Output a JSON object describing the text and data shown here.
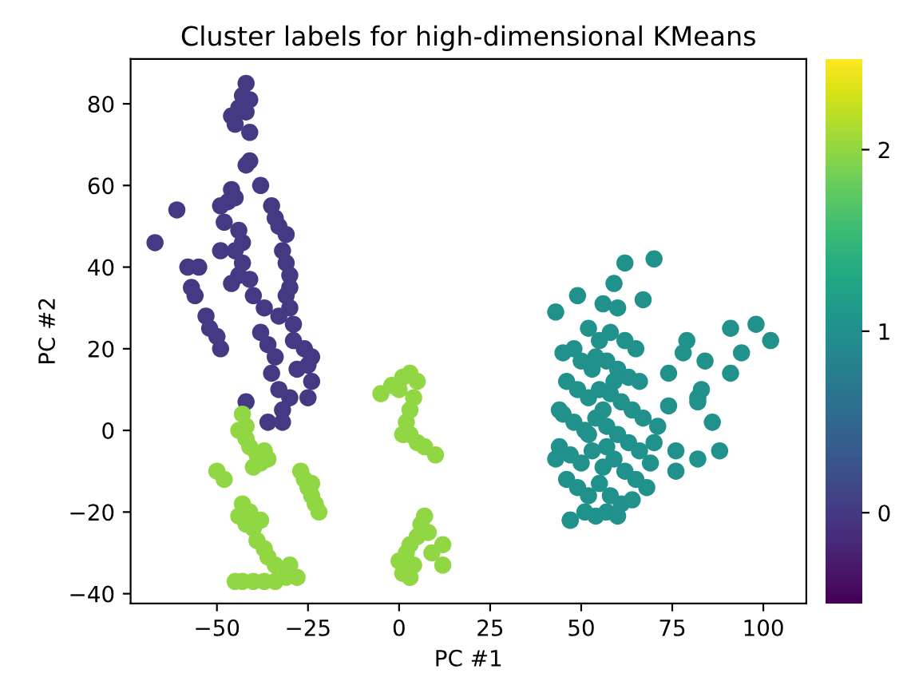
{
  "chart_data": {
    "type": "scatter",
    "title": "Cluster labels for high-dimensional KMeans",
    "xlabel": "PC #1",
    "ylabel": "PC #2",
    "xlim": [
      -73.7,
      111.8
    ],
    "ylim": [
      -42.4,
      91
    ],
    "xticks": [
      -50,
      -25,
      0,
      25,
      50,
      75,
      100
    ],
    "yticks": [
      -40,
      -20,
      0,
      20,
      40,
      60,
      80
    ],
    "clim": [
      -0.5,
      2.5
    ],
    "cticks": [
      0,
      1,
      2
    ],
    "grid": false,
    "legend": false,
    "marker": "circle",
    "series": [
      {
        "x": [
          -42,
          -43,
          -41,
          -44,
          -42,
          -46,
          -45,
          -41,
          -41,
          -42,
          -38,
          -46,
          -47,
          -45,
          -49,
          -35,
          -34,
          -33,
          -31,
          -48,
          -44,
          -43,
          -49,
          -45,
          -43,
          -32,
          -31,
          -30,
          -44,
          -41,
          -46,
          -61,
          -67,
          -58,
          -55,
          -57,
          -56,
          -53,
          -52,
          -50,
          -49,
          -40,
          -37,
          -33,
          -30,
          -29,
          -31,
          -30,
          -38,
          -36,
          -34,
          -35,
          -33,
          -32,
          -30,
          -29,
          -26,
          -25,
          -24,
          -25,
          -28,
          -42,
          -36,
          -32,
          -24
        ],
        "values": [
          85,
          82,
          81,
          79,
          78,
          77,
          75,
          73,
          66,
          65,
          60,
          59,
          56,
          57,
          55,
          55,
          52,
          50,
          48,
          51,
          49,
          46,
          44,
          44,
          41,
          44,
          41,
          38,
          38,
          37,
          36,
          54,
          46,
          40,
          40,
          35,
          33,
          28,
          25,
          23,
          20,
          33,
          30,
          28,
          30,
          26,
          33,
          35,
          24,
          21,
          18,
          14,
          10,
          5,
          8,
          22,
          20,
          16,
          12,
          8,
          15,
          7,
          2,
          2,
          18
        ],
        "cvalues": [
          0,
          0,
          0,
          0,
          0,
          0,
          0,
          0,
          0,
          0,
          0,
          0,
          0,
          0,
          0,
          0,
          0,
          0,
          0,
          0,
          0,
          0,
          0,
          0,
          0,
          0,
          0,
          0,
          0,
          0,
          0,
          0,
          0,
          0,
          0,
          0,
          0,
          0,
          0,
          0,
          0,
          0,
          0,
          0,
          0,
          0,
          0,
          0,
          0,
          0,
          0,
          0,
          0,
          0,
          0,
          0,
          0,
          0,
          0,
          0,
          0,
          0,
          0,
          0,
          0
        ]
      },
      {
        "x": [
          70,
          62,
          59,
          67,
          49,
          43,
          56,
          60,
          98,
          102,
          91,
          94,
          91,
          79,
          78,
          84,
          74,
          83,
          82,
          71,
          74,
          82,
          86,
          88,
          76,
          82,
          70,
          76,
          52,
          55,
          58,
          62,
          65,
          48,
          50,
          53,
          57,
          60,
          63,
          66,
          46,
          49,
          52,
          55,
          58,
          61,
          64,
          67,
          45,
          48,
          51,
          54,
          57,
          60,
          63,
          66,
          69,
          44,
          47,
          50,
          53,
          56,
          59,
          62,
          65,
          68,
          46,
          49,
          52,
          55,
          58,
          61,
          64,
          47,
          51,
          54,
          57,
          60,
          52,
          56,
          59,
          54,
          57,
          45,
          44,
          43,
          47
        ],
        "values": [
          42,
          41,
          36,
          32,
          33,
          29,
          31,
          30,
          26,
          22,
          25,
          19,
          14,
          22,
          19,
          17,
          14,
          10,
          8,
          1,
          6,
          7,
          2,
          -5,
          -10,
          -7,
          -3,
          -5,
          25,
          22,
          24,
          22,
          20,
          20,
          17,
          15,
          17,
          15,
          13,
          12,
          12,
          10,
          8,
          10,
          9,
          7,
          5,
          3,
          4,
          2,
          0,
          3,
          1,
          -1,
          -3,
          -5,
          -8,
          -4,
          -6,
          -8,
          -5,
          -9,
          -7,
          -10,
          -12,
          -14,
          -12,
          -14,
          -16,
          -13,
          -16,
          -18,
          -17,
          -22,
          -20,
          -21,
          -20,
          -21,
          -1,
          5,
          12,
          18,
          -4,
          19,
          5,
          -7,
          -22
        ],
        "cvalues": [
          1,
          1,
          1,
          1,
          1,
          1,
          1,
          1,
          1,
          1,
          1,
          1,
          1,
          1,
          1,
          1,
          1,
          1,
          1,
          1,
          1,
          1,
          1,
          1,
          1,
          1,
          1,
          1,
          1,
          1,
          1,
          1,
          1,
          1,
          1,
          1,
          1,
          1,
          1,
          1,
          1,
          1,
          1,
          1,
          1,
          1,
          1,
          1,
          1,
          1,
          1,
          1,
          1,
          1,
          1,
          1,
          1,
          1,
          1,
          1,
          1,
          1,
          1,
          1,
          1,
          1,
          1,
          1,
          1,
          1,
          1,
          1,
          1,
          1,
          1,
          1,
          1,
          1,
          1,
          1,
          1,
          1,
          1,
          1,
          1,
          1,
          1
        ]
      },
      {
        "x": [
          -43,
          -42,
          -42,
          -41,
          -39,
          -38,
          -37,
          -36,
          -40,
          -44,
          -50,
          -48,
          -27,
          -26,
          -25,
          -24,
          -23,
          -22,
          -24,
          -43,
          -44,
          -42,
          -40,
          -39,
          -37,
          -36,
          -34,
          -30,
          -28,
          -31,
          -34,
          -37,
          -40,
          -43,
          -45,
          -41,
          -38,
          -5,
          -2,
          1,
          3,
          5,
          4,
          3,
          2,
          3,
          5,
          7,
          10,
          1,
          0,
          7,
          6,
          8,
          5,
          3,
          2,
          0,
          1,
          4,
          12,
          12,
          9,
          3
        ],
        "values": [
          4,
          1,
          -2,
          -4,
          -6,
          -8,
          -5,
          -7,
          -9,
          0,
          -10,
          -12,
          -10,
          -12,
          -14,
          -16,
          -18,
          -20,
          -13,
          -18,
          -21,
          -23,
          -24,
          -27,
          -29,
          -31,
          -33,
          -33,
          -36,
          -36,
          -37,
          -37,
          -37,
          -37,
          -37,
          -20,
          -22,
          9,
          11,
          13,
          14,
          12,
          8,
          5,
          2,
          -1,
          -3,
          -4,
          -6,
          -1,
          10,
          -21,
          -23,
          -25,
          -26,
          -28,
          -30,
          -32,
          -35,
          -33,
          -28,
          -33,
          -30,
          -36
        ],
        "cvalues": [
          2,
          2,
          2,
          2,
          2,
          2,
          2,
          2,
          2,
          2,
          2,
          2,
          2,
          2,
          2,
          2,
          2,
          2,
          2,
          2,
          2,
          2,
          2,
          2,
          2,
          2,
          2,
          2,
          2,
          2,
          2,
          2,
          2,
          2,
          2,
          2,
          2,
          2,
          2,
          2,
          2,
          2,
          2,
          2,
          2,
          2,
          2,
          2,
          2,
          2,
          2,
          2,
          2,
          2,
          2,
          2,
          2,
          2,
          2,
          2,
          2,
          2,
          2,
          2
        ]
      }
    ]
  }
}
